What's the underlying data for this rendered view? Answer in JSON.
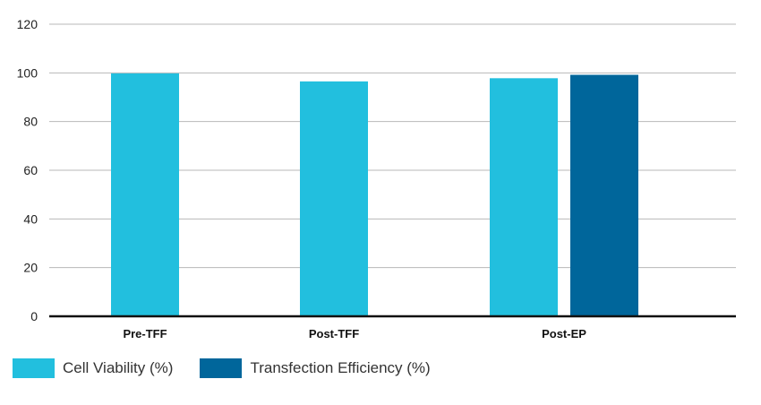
{
  "chart_data": {
    "type": "bar",
    "categories": [
      "Pre-TFF",
      "Post-TFF",
      "Post-EP"
    ],
    "series": [
      {
        "name": "Cell Viability (%)",
        "values": [
          99.8,
          96.5,
          97.8
        ],
        "color": "#22bfde"
      },
      {
        "name": "Transfection Efficiency (%)",
        "values": [
          null,
          null,
          99.2
        ],
        "color": "#00669b"
      }
    ],
    "ylim": [
      0,
      120
    ],
    "yticks": [
      0,
      20,
      40,
      60,
      80,
      100,
      120
    ],
    "grid": true,
    "legend": "bottom-left"
  }
}
